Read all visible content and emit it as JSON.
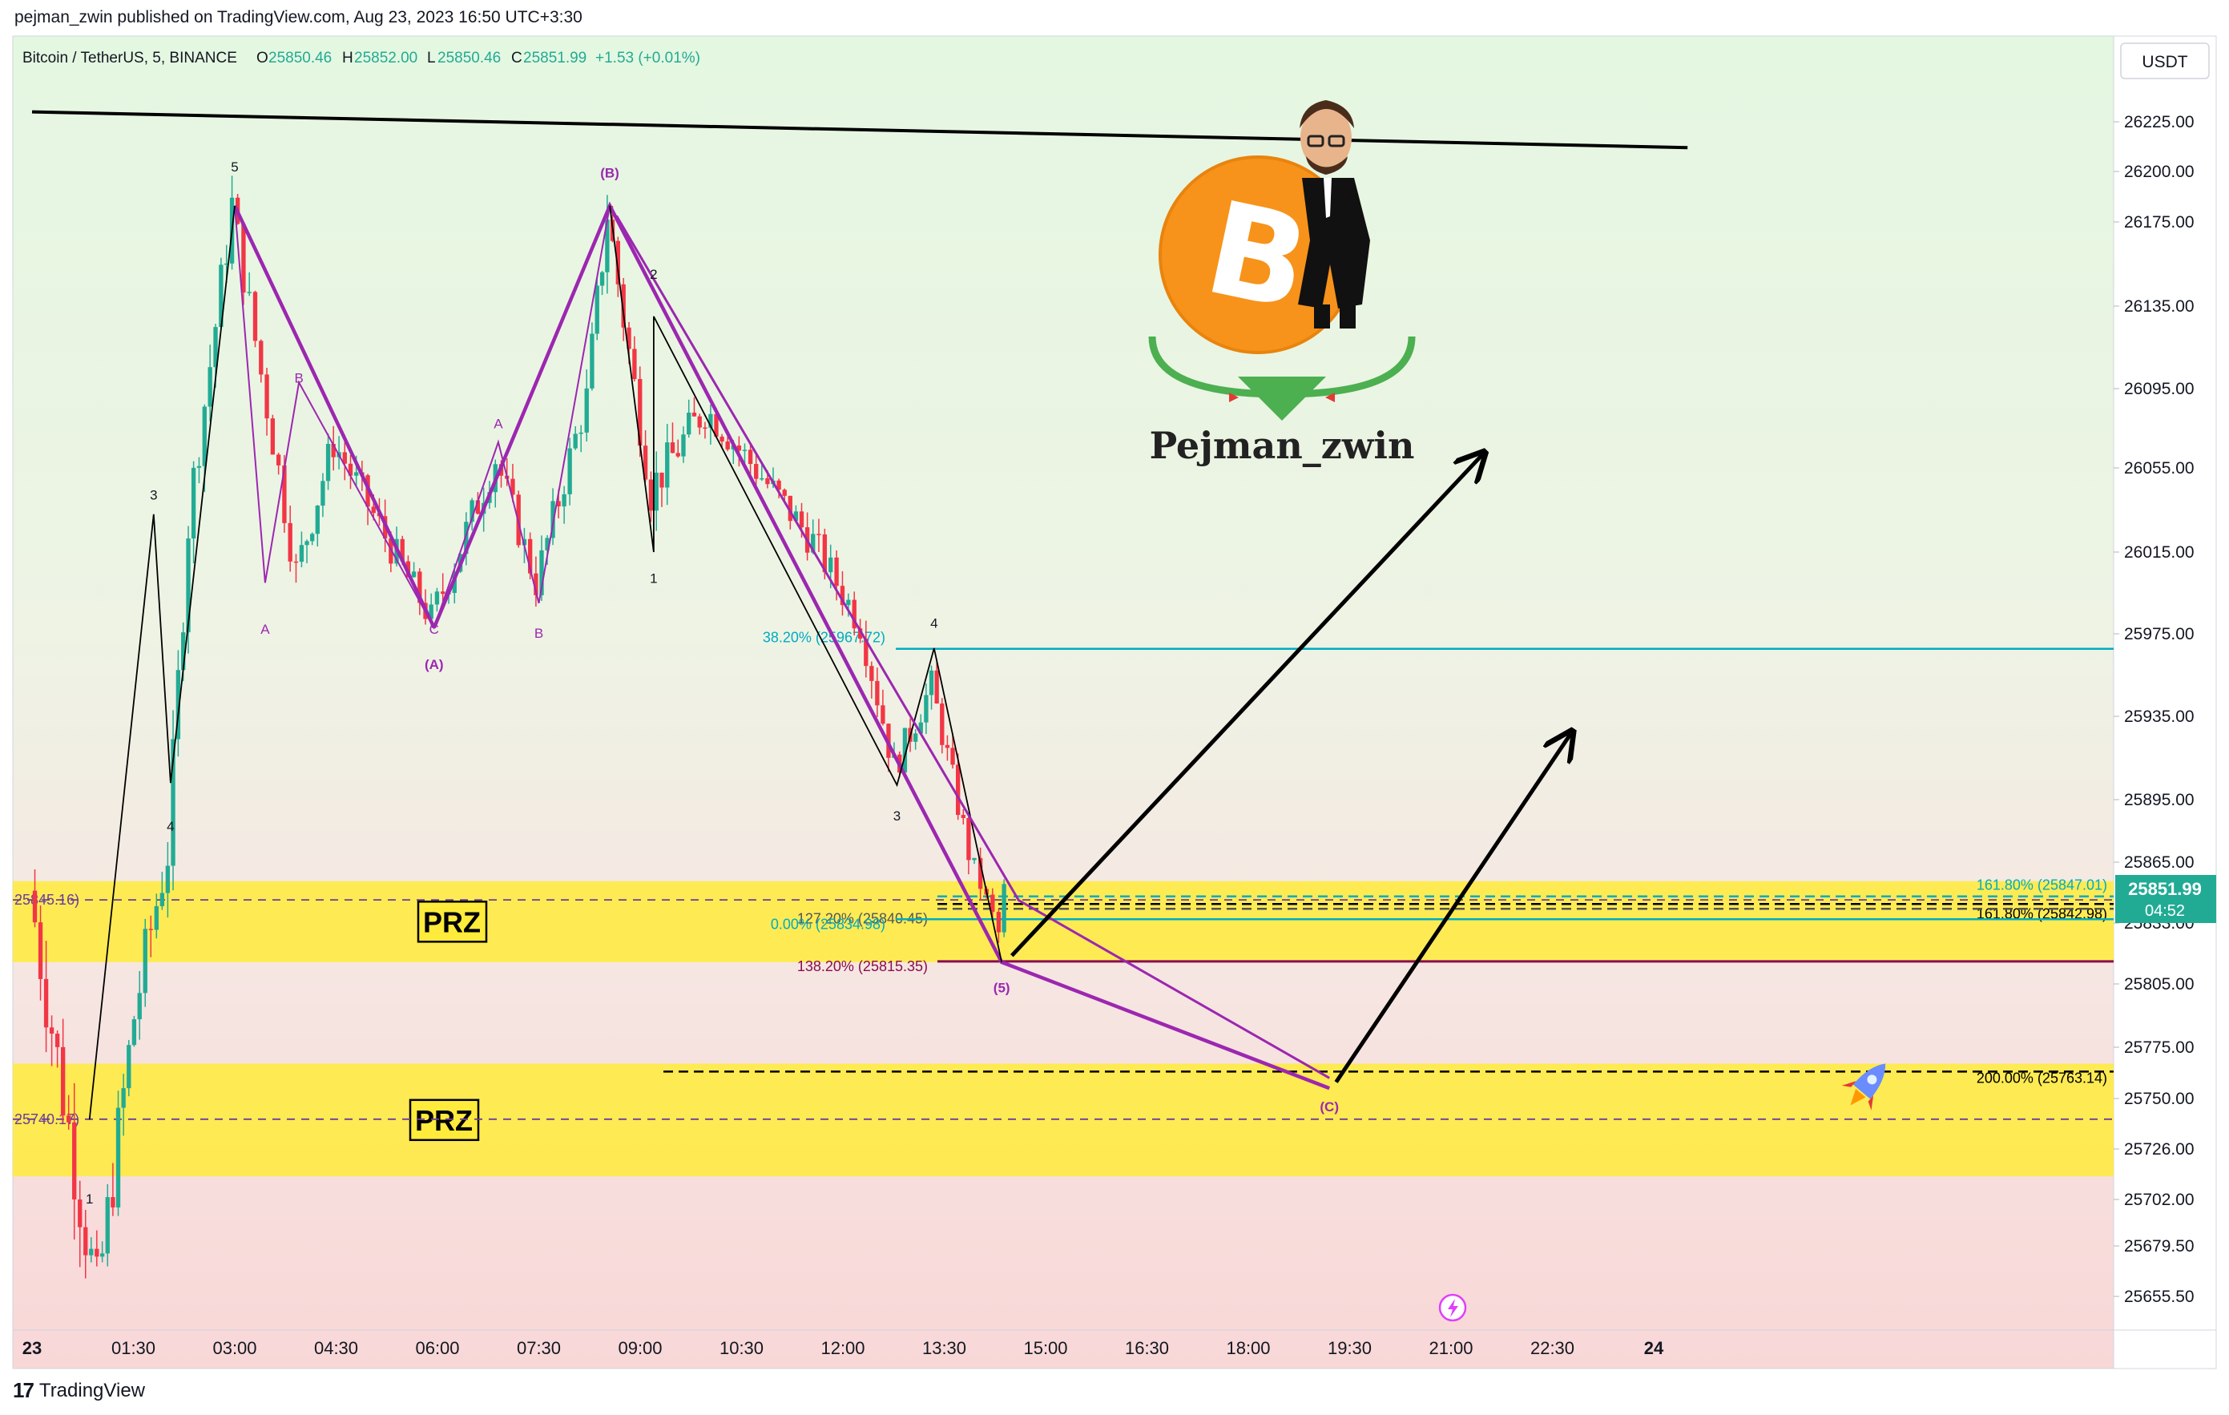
{
  "publish_line": "pejman_zwin published on TradingView.com, Aug 23, 2023 16:50 UTC+3:30",
  "footer": {
    "logo_mark": "17",
    "logo_text": "TradingView"
  },
  "header": {
    "symbol": "Bitcoin / TetherUS, 5, BINANCE",
    "o_label": "O",
    "o_value": "25850.46",
    "h_label": "H",
    "h_value": "25852.00",
    "l_label": "L",
    "l_value": "25850.46",
    "c_label": "C",
    "c_value": "25851.99",
    "change": "+1.53 (+0.01%)"
  },
  "currency_button": "USDT",
  "price_label": {
    "price": "25851.99",
    "countdown": "04:52"
  },
  "watermark_text": "Pejman_zwin",
  "colors": {
    "up": "#22ab94",
    "down": "#f23645",
    "pattern": "#9c27b0",
    "prz": "#ffeb3b",
    "fib_cyan": "#00bcd4",
    "fib_red": "#880e4f",
    "trendline": "#000000",
    "bg_top": "#e4f7e1",
    "bg_bottom": "#f8d7d7"
  },
  "chart_data": {
    "type": "candlestick",
    "symbol": "Bitcoin / TetherUS",
    "interval": "5",
    "exchange": "BINANCE",
    "x_ticks": [
      "23",
      "01:30",
      "03:00",
      "04:30",
      "06:00",
      "07:30",
      "09:00",
      "10:30",
      "12:00",
      "13:30",
      "15:00",
      "16:30",
      "18:00",
      "19:30",
      "21:00",
      "22:30",
      "24"
    ],
    "y_ticks": [
      26225,
      26200,
      26175,
      26135,
      26095,
      26055,
      26015,
      25975,
      25935,
      25895,
      25865,
      25833,
      25805,
      25775,
      25750,
      25726,
      25702,
      25679.5,
      25655.5
    ],
    "y_tick_labels": [
      "26225.00",
      "26200.00",
      "26175.00",
      "26135.00",
      "26095.00",
      "26055.00",
      "26015.00",
      "25975.00",
      "25935.00",
      "25895.00",
      "25865.00",
      "25833.00",
      "25805.00",
      "25775.00",
      "25750.00",
      "25726.00",
      "25702.00",
      "25679.50",
      "25655.50"
    ],
    "ohlc_segments": [
      {
        "from_h": 0.0,
        "to_h": 1.0,
        "open": 25850,
        "close": 25655,
        "noise": 40
      },
      {
        "from_h": 1.0,
        "to_h": 1.55,
        "open": 25655,
        "close": 25790,
        "noise": 35
      },
      {
        "from_h": 1.55,
        "to_h": 2.05,
        "open": 25790,
        "close": 25870,
        "noise": 30
      },
      {
        "from_h": 2.05,
        "to_h": 2.35,
        "open": 25870,
        "close": 26030,
        "noise": 30
      },
      {
        "from_h": 2.35,
        "to_h": 3.0,
        "open": 26030,
        "close": 26183,
        "noise": 25
      },
      {
        "from_h": 3.0,
        "to_h": 3.95,
        "open": 26183,
        "close": 26005,
        "noise": 22
      },
      {
        "from_h": 3.95,
        "to_h": 4.5,
        "open": 26005,
        "close": 26068,
        "noise": 20
      },
      {
        "from_h": 4.5,
        "to_h": 5.95,
        "open": 26068,
        "close": 25982,
        "noise": 18
      },
      {
        "from_h": 5.95,
        "to_h": 6.9,
        "open": 25982,
        "close": 26060,
        "noise": 20
      },
      {
        "from_h": 6.9,
        "to_h": 7.5,
        "open": 26060,
        "close": 26000,
        "noise": 18
      },
      {
        "from_h": 7.5,
        "to_h": 8.25,
        "open": 26000,
        "close": 26090,
        "noise": 20
      },
      {
        "from_h": 8.25,
        "to_h": 8.55,
        "open": 26090,
        "close": 26180,
        "noise": 25
      },
      {
        "from_h": 8.55,
        "to_h": 9.2,
        "open": 26180,
        "close": 26045,
        "noise": 25
      },
      {
        "from_h": 9.2,
        "to_h": 10.0,
        "open": 26045,
        "close": 26085,
        "noise": 22
      },
      {
        "from_h": 10.0,
        "to_h": 11.6,
        "open": 26085,
        "close": 26020,
        "noise": 18
      },
      {
        "from_h": 11.6,
        "to_h": 12.3,
        "open": 26020,
        "close": 25980,
        "noise": 18
      },
      {
        "from_h": 12.3,
        "to_h": 12.8,
        "open": 25980,
        "close": 25910,
        "noise": 18
      },
      {
        "from_h": 12.8,
        "to_h": 13.35,
        "open": 25910,
        "close": 25950,
        "noise": 16
      },
      {
        "from_h": 13.35,
        "to_h": 13.9,
        "open": 25950,
        "close": 25870,
        "noise": 16
      },
      {
        "from_h": 13.9,
        "to_h": 14.35,
        "open": 25870,
        "close": 25828,
        "noise": 12
      },
      {
        "from_h": 14.35,
        "to_h": 14.42,
        "open": 25828,
        "close": 25852,
        "noise": 6
      }
    ],
    "last_price": 25851.99,
    "prz_zones": [
      {
        "label": "PRZ",
        "top": 25855,
        "bottom": 25815
      },
      {
        "label": "PRZ",
        "top": 25767,
        "bottom": 25713
      }
    ],
    "fib_levels": [
      {
        "label": "38.20% (25967.72)",
        "value": 25967.72,
        "color": "cyan"
      },
      {
        "label": "161.80% (25847.01)",
        "value": 25847.01,
        "color": "cyan"
      },
      {
        "label": "161.80% (25842.98)",
        "value": 25842.98,
        "color": "black"
      },
      {
        "label": "127.20% (25840.45)",
        "value": 25840.45,
        "color": "gray"
      },
      {
        "label": "0.00% (25834.98)",
        "value": 25834.98,
        "color": "cyan"
      },
      {
        "label": "138.20% (25815.35)",
        "value": 25815.35,
        "color": "red"
      },
      {
        "label": "200.00% (25763.14)",
        "value": 25763.14,
        "color": "black"
      }
    ],
    "left_price_labels": [
      {
        "label": "25845.16)",
        "value": 25845.16
      },
      {
        "label": "25740.17)",
        "value": 25740.17
      }
    ],
    "wave_labels": [
      {
        "text": "5",
        "h": 3.0,
        "price": 26200
      },
      {
        "text": "3",
        "h": 1.8,
        "price": 26040
      },
      {
        "text": "4",
        "h": 2.05,
        "price": 25880
      },
      {
        "text": "1",
        "h": 0.85,
        "price": 25700
      },
      {
        "text": "B",
        "h": 3.95,
        "price": 26098
      },
      {
        "text": "A",
        "h": 3.45,
        "price": 25975
      },
      {
        "text": "C",
        "h": 5.95,
        "price": 25975
      },
      {
        "text": "(A)",
        "h": 5.95,
        "price": 25958
      },
      {
        "text": "A",
        "h": 6.9,
        "price": 26075
      },
      {
        "text": "B",
        "h": 7.5,
        "price": 25973
      },
      {
        "text": "(B)",
        "h": 8.55,
        "price": 26197
      },
      {
        "text": "2",
        "h": 9.2,
        "price": 26148
      },
      {
        "text": "1",
        "h": 9.2,
        "price": 26000
      },
      {
        "text": "3",
        "h": 12.8,
        "price": 25885
      },
      {
        "text": "4",
        "h": 13.35,
        "price": 25978
      },
      {
        "text": "(5)",
        "h": 14.35,
        "price": 25801
      },
      {
        "text": "(C)",
        "h": 19.2,
        "price": 25744
      }
    ],
    "pattern_path": [
      {
        "h": 5.95,
        "price": 25978
      },
      {
        "h": 8.55,
        "price": 26183
      },
      {
        "h": 14.35,
        "price": 25815
      },
      {
        "h": 19.2,
        "price": 25755
      }
    ],
    "pattern_left_leg": [
      {
        "h": 3.0,
        "price": 26183
      },
      {
        "h": 5.95,
        "price": 25978
      }
    ],
    "small_waves": [
      {
        "h": 3.0,
        "price": 26183
      },
      {
        "h": 3.45,
        "price": 26000
      },
      {
        "h": 3.95,
        "price": 26098
      },
      {
        "h": 5.95,
        "price": 25978
      },
      {
        "h": 6.9,
        "price": 26068
      },
      {
        "h": 7.5,
        "price": 25990
      },
      {
        "h": 8.55,
        "price": 26183
      }
    ],
    "impulse_waves": [
      {
        "h": 0.85,
        "price": 25740
      },
      {
        "h": 1.8,
        "price": 26033
      },
      {
        "h": 2.05,
        "price": 25903
      },
      {
        "h": 3.0,
        "price": 26183
      }
    ],
    "impulse_waves_2": [
      {
        "h": 8.55,
        "price": 26183
      },
      {
        "h": 9.2,
        "price": 26015
      },
      {
        "h": 9.2,
        "price": 26130
      },
      {
        "h": 12.8,
        "price": 25902
      },
      {
        "h": 13.35,
        "price": 25968
      },
      {
        "h": 14.35,
        "price": 25815
      }
    ],
    "trendline": [
      {
        "h": 0.0,
        "price": 26230
      },
      {
        "h": 24.5,
        "price": 26212
      }
    ],
    "arrows": [
      {
        "from": {
          "h": 14.5,
          "price": 25818
        },
        "to": {
          "h": 21.5,
          "price": 26063
        }
      },
      {
        "from": {
          "h": 19.3,
          "price": 25758
        },
        "to": {
          "h": 22.8,
          "price": 25928
        }
      }
    ]
  }
}
